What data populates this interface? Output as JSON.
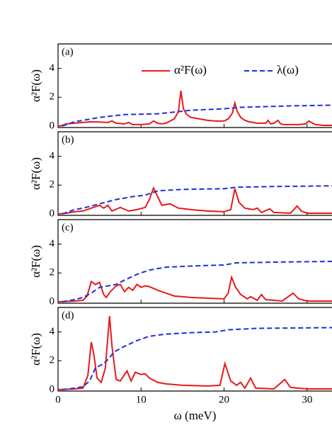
{
  "chart_data": [
    {
      "type": "line",
      "annotation": "(a)",
      "ylabel": "α²F(ω)",
      "legend": "top",
      "xlim": [
        0,
        33
      ],
      "xticks": [
        0,
        10,
        20,
        30
      ],
      "ylim": [
        -0.1,
        5.7
      ],
      "yticks": [
        0,
        2,
        4
      ],
      "series": [
        {
          "name": "α²F(ω)",
          "color": "#e8191c",
          "style": "solid",
          "x": [
            0,
            0.5,
            1,
            2,
            3,
            4,
            5,
            6,
            6.5,
            7,
            8,
            8.5,
            9,
            10,
            11,
            11.5,
            12,
            12.5,
            13,
            13.5,
            14,
            14.5,
            14.8,
            15.1,
            15.5,
            16,
            17,
            18,
            19,
            20,
            20.5,
            21,
            21.3,
            21.6,
            22,
            22.5,
            23,
            24,
            25,
            25.3,
            25.6,
            26,
            26.5,
            26.8,
            27.2,
            28,
            29,
            29.8,
            30.2,
            31,
            32,
            33
          ],
          "values": [
            0,
            0.05,
            0.15,
            0.2,
            0.25,
            0.3,
            0.28,
            0.25,
            0.35,
            0.2,
            0.15,
            0.25,
            0.1,
            0.1,
            0.15,
            0.35,
            0.2,
            0.15,
            0.2,
            0.35,
            0.5,
            1.0,
            2.45,
            1.2,
            0.8,
            0.6,
            0.5,
            0.4,
            0.35,
            0.35,
            0.5,
            0.9,
            1.6,
            1.0,
            0.6,
            0.4,
            0.3,
            0.2,
            0.2,
            0.4,
            0.15,
            0.2,
            0.4,
            0.15,
            0.1,
            0.1,
            0.1,
            0.15,
            0.35,
            0.1,
            0.05,
            0.05
          ]
        },
        {
          "name": "λ(ω)",
          "color": "#1f2fd6",
          "style": "dashed",
          "x": [
            0.5,
            2,
            5,
            8,
            12,
            14.5,
            16,
            20,
            22,
            28,
            33
          ],
          "values": [
            0,
            0.3,
            0.6,
            0.8,
            0.85,
            1.0,
            1.1,
            1.2,
            1.3,
            1.4,
            1.45
          ]
        }
      ]
    },
    {
      "type": "line",
      "annotation": "(b)",
      "ylabel": "α²F(ω)",
      "xlim": [
        0,
        33
      ],
      "xticks": [
        0,
        10,
        20,
        30
      ],
      "ylim": [
        -0.1,
        5.7
      ],
      "yticks": [
        0,
        2,
        4
      ],
      "series": [
        {
          "color": "#e8191c",
          "style": "solid",
          "x": [
            0,
            1,
            2,
            3,
            4.5,
            5,
            5.5,
            6,
            6.5,
            7.5,
            8.5,
            9.5,
            10.5,
            11,
            11.5,
            12,
            12.5,
            13.5,
            14.5,
            16,
            18,
            20,
            20.8,
            21.3,
            21.8,
            22.5,
            23.5,
            24,
            24.5,
            25.5,
            26,
            28,
            28.8,
            29.3,
            30,
            33
          ],
          "values": [
            0,
            0.05,
            0.15,
            0.2,
            0.5,
            0.6,
            0.4,
            0.6,
            0.2,
            0.45,
            0.2,
            0.3,
            0.45,
            1.0,
            1.8,
            1.2,
            0.6,
            0.7,
            0.4,
            0.3,
            0.2,
            0.15,
            0.3,
            1.75,
            0.8,
            0.4,
            0.3,
            0.4,
            0.1,
            0.35,
            0.1,
            0.05,
            0.55,
            0.2,
            0.05,
            0.05
          ]
        },
        {
          "color": "#1f2fd6",
          "style": "dashed",
          "x": [
            0.5,
            2,
            3,
            5,
            7,
            9,
            10.5,
            12,
            15,
            20,
            21.5,
            26,
            33
          ],
          "values": [
            0,
            0.3,
            0.4,
            0.7,
            1.0,
            1.2,
            1.3,
            1.6,
            1.7,
            1.75,
            1.85,
            1.9,
            1.95
          ]
        }
      ]
    },
    {
      "type": "line",
      "annotation": "(c)",
      "ylabel": "α²F(ω)",
      "xlim": [
        0,
        33
      ],
      "xticks": [
        0,
        10,
        20,
        30
      ],
      "ylim": [
        -0.1,
        5.7
      ],
      "yticks": [
        0,
        2,
        4
      ],
      "series": [
        {
          "color": "#e8191c",
          "style": "solid",
          "x": [
            0,
            2,
            3,
            3.5,
            4,
            4.5,
            5,
            5.5,
            5.8,
            6.3,
            7,
            7.5,
            8,
            8.5,
            9,
            9.5,
            10,
            10.5,
            11,
            12,
            13,
            14,
            16,
            18,
            20,
            20.5,
            20.9,
            21.4,
            22,
            22.8,
            23.2,
            24,
            24.5,
            25,
            27,
            28.3,
            29,
            30,
            33
          ],
          "values": [
            0,
            0.05,
            0.1,
            0.4,
            1.4,
            1.2,
            1.35,
            0.5,
            0.3,
            0.7,
            1.1,
            1.2,
            0.7,
            1.0,
            0.8,
            1.2,
            1.0,
            1.1,
            1.05,
            0.8,
            0.6,
            0.4,
            0.3,
            0.25,
            0.2,
            0.6,
            1.7,
            1.0,
            0.5,
            0.2,
            0.35,
            0.1,
            0.5,
            0.15,
            0.05,
            0.6,
            0.2,
            0.05,
            0.05
          ]
        },
        {
          "color": "#1f2fd6",
          "style": "dashed",
          "x": [
            0.5,
            2,
            3,
            4,
            5,
            7,
            8,
            9.5,
            11,
            13,
            17,
            20,
            21.5,
            26,
            33
          ],
          "values": [
            0,
            0.15,
            0.3,
            0.6,
            1.0,
            1.2,
            1.5,
            1.9,
            2.2,
            2.4,
            2.5,
            2.55,
            2.7,
            2.75,
            2.8
          ]
        }
      ]
    },
    {
      "type": "line",
      "annotation": "(d)",
      "ylabel": "α²F(ω)",
      "xlabel": "ω (meV)",
      "xlim": [
        0,
        33
      ],
      "xticks": [
        0,
        10,
        20,
        30
      ],
      "ylim": [
        -0.1,
        5.7
      ],
      "yticks": [
        0,
        2,
        4
      ],
      "series": [
        {
          "color": "#e8191c",
          "style": "solid",
          "x": [
            0,
            2,
            3,
            3.6,
            4,
            4.3,
            4.7,
            5.2,
            5.7,
            6.2,
            6.5,
            7,
            7.5,
            8.3,
            8.8,
            9.3,
            10,
            10.5,
            11,
            12,
            13,
            15,
            18,
            19.5,
            20.1,
            20.8,
            21.5,
            22,
            22.5,
            23.2,
            23.8,
            26,
            27.3,
            28,
            30,
            33
          ],
          "values": [
            0,
            0.05,
            0.1,
            1.0,
            3.3,
            2.5,
            0.8,
            0.5,
            1.5,
            5.1,
            3.0,
            0.7,
            0.6,
            1.3,
            0.6,
            1.2,
            1.05,
            1.1,
            0.8,
            0.5,
            0.4,
            0.3,
            0.25,
            0.3,
            1.8,
            0.6,
            0.3,
            0.5,
            0.1,
            0.8,
            0.1,
            0.05,
            0.7,
            0.15,
            0.05,
            0.05
          ]
        },
        {
          "color": "#1f2fd6",
          "style": "dashed",
          "x": [
            0.5,
            2,
            3,
            3.8,
            4.5,
            5.5,
            6.2,
            6.7,
            8,
            9.5,
            11,
            13,
            16,
            19,
            20.5,
            24,
            33
          ],
          "values": [
            0,
            0.1,
            0.2,
            0.6,
            1.5,
            1.8,
            2.2,
            2.6,
            3.0,
            3.4,
            3.7,
            3.85,
            3.95,
            4.0,
            4.15,
            4.25,
            4.3
          ]
        }
      ]
    }
  ]
}
